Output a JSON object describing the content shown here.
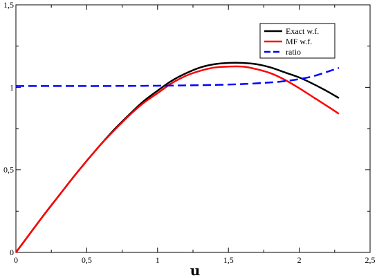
{
  "chart_data": {
    "type": "line",
    "title": "",
    "xlabel": "u",
    "ylabel": "",
    "xlim": [
      0,
      2.5
    ],
    "ylim": [
      0,
      1.5
    ],
    "grid": false,
    "legend_position": "top-right",
    "x_ticks": [
      {
        "value": 0,
        "label": "0"
      },
      {
        "value": 0.5,
        "label": "0,5"
      },
      {
        "value": 1,
        "label": "1"
      },
      {
        "value": 1.5,
        "label": "1,5"
      },
      {
        "value": 2,
        "label": "2"
      },
      {
        "value": 2.5,
        "label": "2,5"
      }
    ],
    "y_ticks": [
      {
        "value": 0,
        "label": "0"
      },
      {
        "value": 0.5,
        "label": "0,5"
      },
      {
        "value": 1,
        "label": "1"
      },
      {
        "value": 1.5,
        "label": "1,5"
      }
    ],
    "series": [
      {
        "name": "Exact w.f.",
        "color": "#000000",
        "dash": "solid",
        "x": [
          0,
          0.1,
          0.2,
          0.3,
          0.4,
          0.5,
          0.6,
          0.7,
          0.8,
          0.9,
          1.0,
          1.1,
          1.2,
          1.3,
          1.4,
          1.5,
          1.6,
          1.7,
          1.8,
          1.9,
          2.0,
          2.1,
          2.2,
          2.28
        ],
        "y": [
          0,
          0.115,
          0.23,
          0.34,
          0.45,
          0.555,
          0.655,
          0.75,
          0.835,
          0.915,
          0.98,
          1.04,
          1.085,
          1.12,
          1.14,
          1.148,
          1.148,
          1.14,
          1.12,
          1.09,
          1.06,
          1.02,
          0.975,
          0.935
        ]
      },
      {
        "name": "MF w.f.",
        "color": "#ff0000",
        "dash": "solid",
        "x": [
          0,
          0.1,
          0.2,
          0.3,
          0.4,
          0.5,
          0.6,
          0.7,
          0.8,
          0.9,
          1.0,
          1.1,
          1.2,
          1.3,
          1.4,
          1.5,
          1.6,
          1.7,
          1.8,
          1.9,
          2.0,
          2.1,
          2.2,
          2.28
        ],
        "y": [
          0,
          0.115,
          0.23,
          0.34,
          0.45,
          0.555,
          0.655,
          0.745,
          0.83,
          0.905,
          0.965,
          1.025,
          1.07,
          1.1,
          1.12,
          1.126,
          1.126,
          1.11,
          1.085,
          1.045,
          0.995,
          0.94,
          0.885,
          0.84
        ]
      },
      {
        "name": "ratio",
        "color": "#0000ff",
        "dash": "dashed",
        "x": [
          0,
          0.2,
          0.4,
          0.6,
          0.8,
          1.0,
          1.2,
          1.4,
          1.6,
          1.8,
          1.9,
          2.0,
          2.1,
          2.2,
          2.28
        ],
        "y": [
          1.008,
          1.008,
          1.008,
          1.008,
          1.009,
          1.01,
          1.012,
          1.015,
          1.02,
          1.03,
          1.038,
          1.05,
          1.068,
          1.095,
          1.118
        ]
      }
    ]
  }
}
